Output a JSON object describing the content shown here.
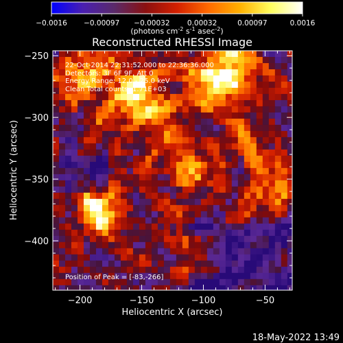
{
  "colorbar": {
    "ticks": [
      "-0.0016",
      "-0.00097",
      "-0.00032",
      "0.00032",
      "0.00097",
      "0.0016"
    ],
    "unit_main": "(photons cm",
    "unit_sup1": "-2",
    "unit_mid": " s",
    "unit_sup2": "-1",
    "unit_mid2": " asec",
    "unit_sup3": "-2",
    "unit_end": ")",
    "colors": [
      "#0000ff",
      "#4a1fb0",
      "#5a2a6a",
      "#8a1010",
      "#d42000",
      "#ff6a00",
      "#ffb000",
      "#ffff60",
      "#ffffff"
    ]
  },
  "chart_data": {
    "type": "heatmap",
    "title": "Reconstructed RHESSI Image",
    "xlabel": "Heliocentric X (arcsec)",
    "ylabel": "Heliocentric Y (arcsec)",
    "xlim": [
      -222,
      -28
    ],
    "ylim": [
      -440,
      -246
    ],
    "xticks": [
      -200,
      -150,
      -100,
      -50
    ],
    "xtick_labels": [
      "−200",
      "−150",
      "−100",
      "−50"
    ],
    "yticks": [
      -250,
      -300,
      -350,
      -400
    ],
    "ytick_labels": [
      "−250",
      "−300",
      "−350",
      "−400"
    ],
    "grid": false,
    "peak": [
      -83,
      -266
    ],
    "annotations": [
      "22-Oct-2014 22:31:52.000 to 22:36:36.000",
      "Detectors: 3F 6F 9F, Att 0",
      "Energy Range: 12.0 - 25.0 keV",
      "Clean    Total counts: 1.71E+03",
      "Position of Peak = [-83,-266]"
    ]
  },
  "footer": {
    "timestamp": "18-May-2022 13:49"
  }
}
